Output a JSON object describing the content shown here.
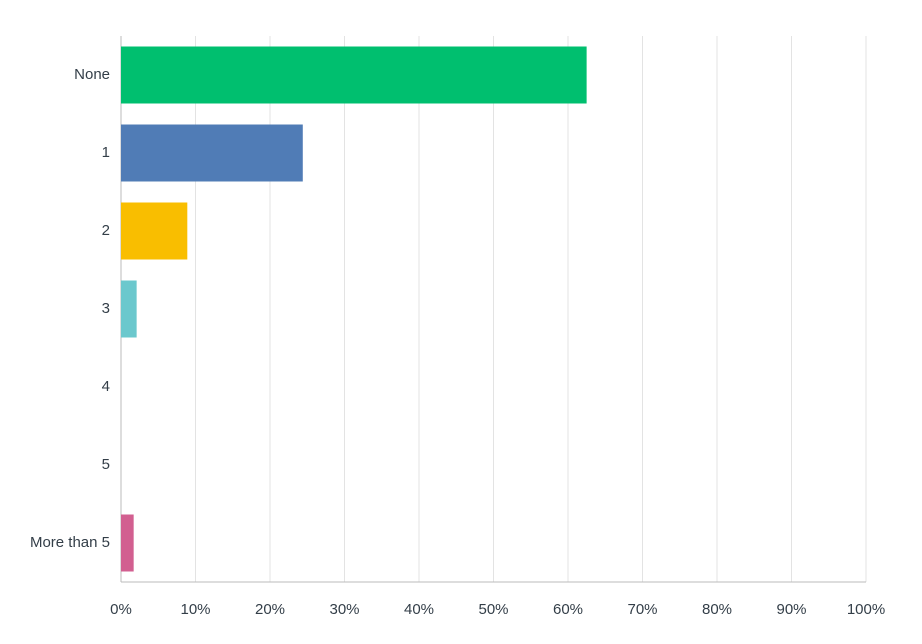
{
  "chart_data": {
    "type": "bar",
    "orientation": "horizontal",
    "categories": [
      "None",
      "1",
      "2",
      "3",
      "4",
      "5",
      "More than 5"
    ],
    "values": [
      62.5,
      24.4,
      8.9,
      2.1,
      0,
      0,
      1.7
    ],
    "colors": [
      "#00bf6f",
      "#507cb6",
      "#f9be00",
      "#6bc8cd",
      "#ff8b4f",
      "#7d5e90",
      "#d25f90"
    ],
    "xlim": [
      0,
      100
    ],
    "xticks": [
      {
        "value": 0,
        "label": "0%"
      },
      {
        "value": 10,
        "label": "10%"
      },
      {
        "value": 20,
        "label": "20%"
      },
      {
        "value": 30,
        "label": "30%"
      },
      {
        "value": 40,
        "label": "40%"
      },
      {
        "value": 50,
        "label": "50%"
      },
      {
        "value": 60,
        "label": "60%"
      },
      {
        "value": 70,
        "label": "70%"
      },
      {
        "value": 80,
        "label": "80%"
      },
      {
        "value": 90,
        "label": "90%"
      },
      {
        "value": 100,
        "label": "100%"
      }
    ],
    "grid": true
  }
}
